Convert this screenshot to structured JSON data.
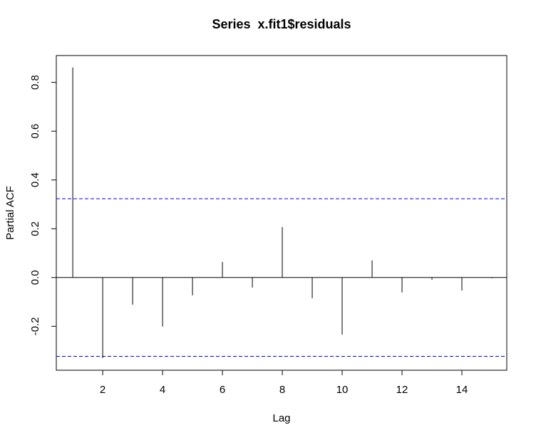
{
  "chart_data": {
    "type": "pacf",
    "title": "Series  x.fit1$residuals",
    "x_label": "Lag",
    "y_label": "Partial ACF",
    "x": [
      1,
      2,
      3,
      4,
      5,
      6,
      7,
      8,
      9,
      10,
      11,
      12,
      13,
      14,
      15
    ],
    "values": [
      0.861,
      -0.33,
      -0.111,
      -0.201,
      -0.073,
      0.064,
      -0.041,
      0.207,
      -0.085,
      -0.234,
      0.07,
      -0.061,
      -0.009,
      -0.053,
      -0.003
    ],
    "color": "#000000",
    "conf_lines": [
      0.323,
      -0.323
    ],
    "conf_color": "#0000ff",
    "xlim": [
      0.45,
      15.5
    ],
    "xticks": [
      2,
      4,
      6,
      8,
      10,
      12,
      14
    ],
    "ylim": [
      -0.38,
      0.91
    ],
    "yticks": [
      -0.2,
      {
        "value": 0,
        "label": "0.0"
      },
      0.2,
      0.4,
      0.6,
      0.8
    ]
  }
}
